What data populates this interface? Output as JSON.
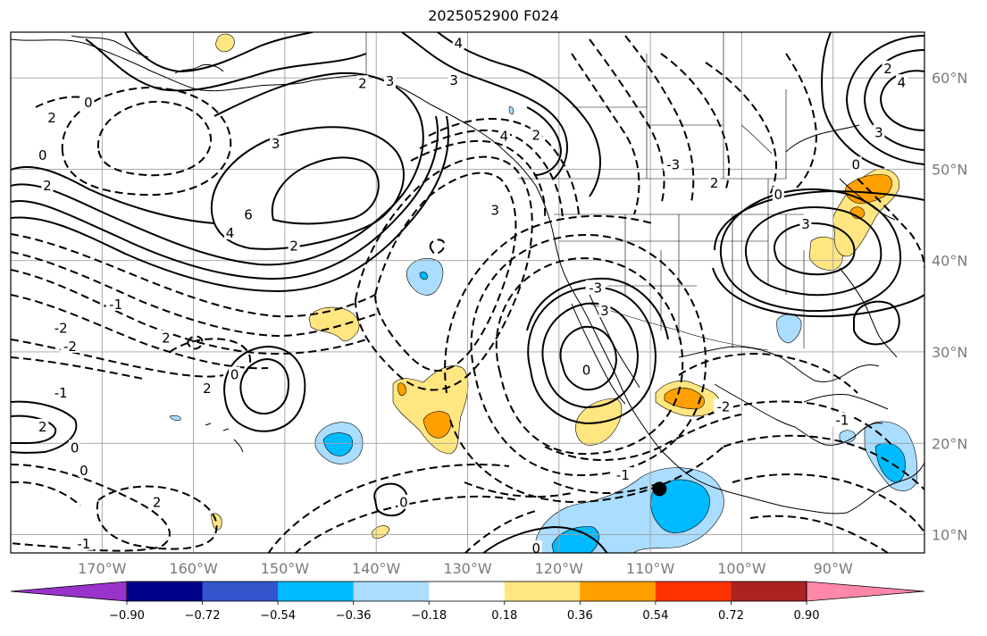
{
  "title": "2025052900 F024",
  "map": {
    "lon_range": [
      -180,
      -80
    ],
    "lat_range": [
      8,
      65
    ],
    "gridlines": true,
    "lat_ticks": [
      {
        "lat": 60,
        "label": "60°N"
      },
      {
        "lat": 50,
        "label": "50°N"
      },
      {
        "lat": 40,
        "label": "40°N"
      },
      {
        "lat": 30,
        "label": "30°N"
      },
      {
        "lat": 20,
        "label": "20°N"
      },
      {
        "lat": 10,
        "label": "10°N"
      }
    ],
    "lon_ticks": [
      {
        "lon": -170,
        "label": "170°W"
      },
      {
        "lon": -160,
        "label": "160°W"
      },
      {
        "lon": -150,
        "label": "150°W"
      },
      {
        "lon": -140,
        "label": "140°W"
      },
      {
        "lon": -130,
        "label": "130°W"
      },
      {
        "lon": -120,
        "label": "120°W"
      },
      {
        "lon": -110,
        "label": "110°W"
      },
      {
        "lon": -100,
        "label": "100°W"
      },
      {
        "lon": -90,
        "label": "90°W"
      }
    ],
    "marker": {
      "lon": -109,
      "lat": 15
    },
    "contour_labels": [
      {
        "text": "6",
        "lon": -154,
        "lat": 45
      },
      {
        "text": "4",
        "lon": -156,
        "lat": 43
      },
      {
        "text": "3",
        "lon": -151,
        "lat": 52.8
      },
      {
        "text": "2",
        "lon": -149,
        "lat": 41.6
      },
      {
        "text": "3",
        "lon": -138.5,
        "lat": 59.6
      },
      {
        "text": "2",
        "lon": -141.5,
        "lat": 59.4
      },
      {
        "text": "4",
        "lon": -131,
        "lat": 63.8
      },
      {
        "text": "3",
        "lon": -131.5,
        "lat": 59.7
      },
      {
        "text": "2",
        "lon": -122.5,
        "lat": 53.7
      },
      {
        "text": "4",
        "lon": -126,
        "lat": 53.6
      },
      {
        "text": "2",
        "lon": -176,
        "lat": 48.2
      },
      {
        "text": "2",
        "lon": -175.5,
        "lat": 55.6
      },
      {
        "text": "0",
        "lon": -171.5,
        "lat": 57.3
      },
      {
        "text": "0",
        "lon": -176.5,
        "lat": 51.5
      },
      {
        "text": "-1",
        "lon": -168.5,
        "lat": 35.2
      },
      {
        "text": "-2",
        "lon": -174.5,
        "lat": 32.6
      },
      {
        "text": "-2",
        "lon": -173.5,
        "lat": 30.6
      },
      {
        "text": "-1",
        "lon": -174.5,
        "lat": 25.5
      },
      {
        "text": "2",
        "lon": -176.5,
        "lat": 21.8
      },
      {
        "text": "0",
        "lon": -173,
        "lat": 19.5
      },
      {
        "text": "0",
        "lon": -172,
        "lat": 17
      },
      {
        "text": "2",
        "lon": -164,
        "lat": 13.5
      },
      {
        "text": "-1",
        "lon": -172,
        "lat": 9
      },
      {
        "text": "2",
        "lon": -158.5,
        "lat": 26
      },
      {
        "text": "0",
        "lon": -155.5,
        "lat": 27.5
      },
      {
        "text": "2",
        "lon": -163,
        "lat": 31.5
      },
      {
        "text": "3",
        "lon": -127,
        "lat": 45.5
      },
      {
        "text": "-3",
        "lon": -116,
        "lat": 37
      },
      {
        "text": "3",
        "lon": -115,
        "lat": 34.5
      },
      {
        "text": "0",
        "lon": -117,
        "lat": 28
      },
      {
        "text": "-1",
        "lon": -113,
        "lat": 16.5
      },
      {
        "text": "0",
        "lon": -137,
        "lat": 13.5
      },
      {
        "text": "0",
        "lon": -122.5,
        "lat": 8.5
      },
      {
        "text": "-3",
        "lon": -107.5,
        "lat": 50.5
      },
      {
        "text": "2",
        "lon": -103,
        "lat": 48.5
      },
      {
        "text": "0",
        "lon": -96,
        "lat": 47.2
      },
      {
        "text": "3",
        "lon": -93,
        "lat": 44
      },
      {
        "text": "2",
        "lon": -84,
        "lat": 61
      },
      {
        "text": "4",
        "lon": -82.5,
        "lat": 59.5
      },
      {
        "text": "3",
        "lon": -85,
        "lat": 54
      },
      {
        "text": "0",
        "lon": -87.5,
        "lat": 50.5
      },
      {
        "text": "-1",
        "lon": -89,
        "lat": 22.5
      },
      {
        "text": "-2",
        "lon": -102,
        "lat": 24
      }
    ]
  },
  "colorbar": {
    "colors": [
      "#9933cc",
      "#000088",
      "#3355cc",
      "#00bbff",
      "#aaddff",
      "#ffffff",
      "#ffe680",
      "#ffa000",
      "#ff3300",
      "#aa2222",
      "#ff88aa"
    ],
    "tick_labels": [
      "−0.90",
      "−0.72",
      "−0.54",
      "−0.36",
      "−0.18",
      "0.18",
      "0.36",
      "0.54",
      "0.72",
      "0.90"
    ]
  }
}
